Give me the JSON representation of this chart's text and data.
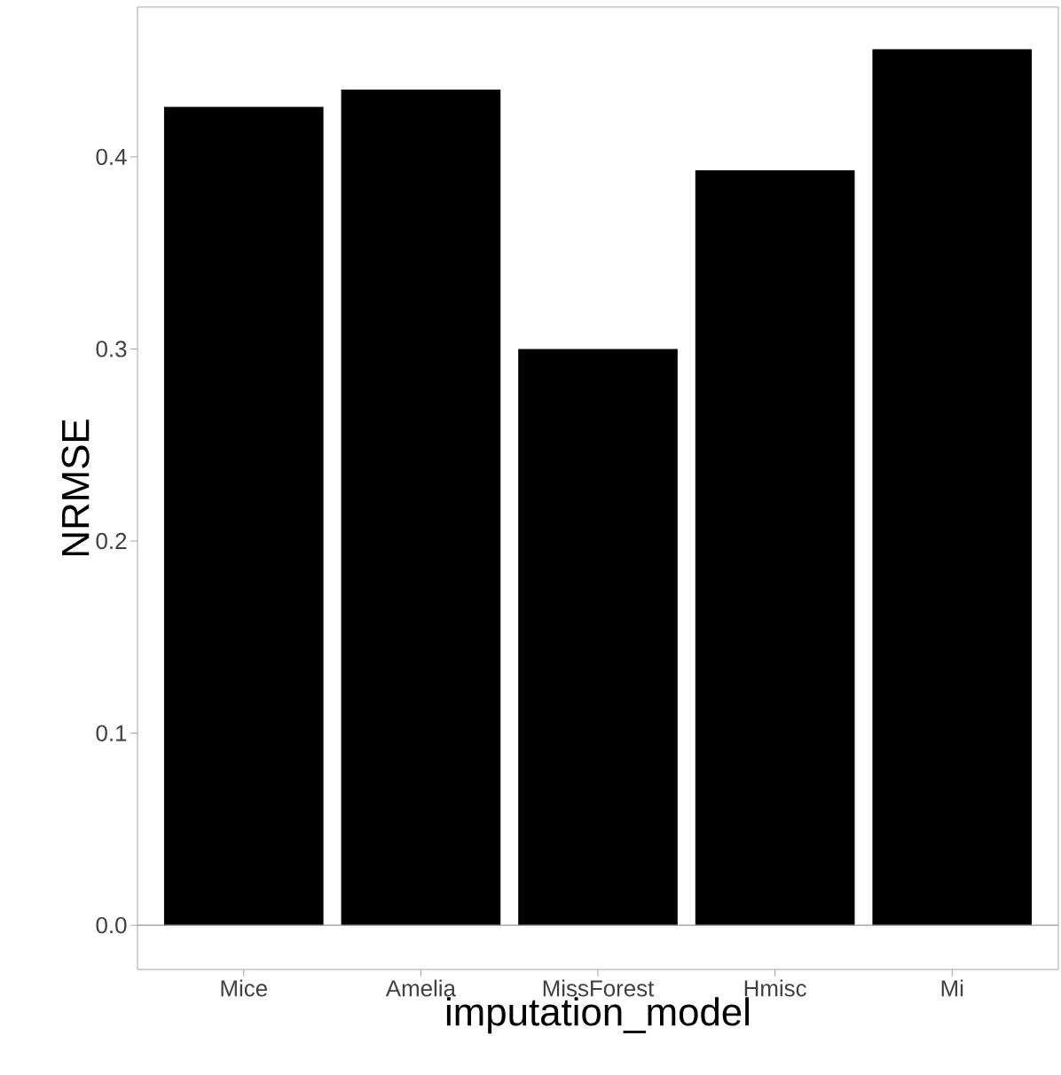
{
  "chart_data": {
    "type": "bar",
    "xlabel": "imputation_model",
    "ylabel": "NRMSE",
    "categories": [
      "Mice",
      "Amelia",
      "MissForest",
      "Hmisc",
      "Mi"
    ],
    "values": [
      0.426,
      0.435,
      0.3,
      0.393,
      0.456
    ],
    "color": "#000000",
    "ylim": [
      -0.023,
      0.478
    ],
    "yticks": [
      {
        "value": 0,
        "label": "0.0"
      },
      0.1,
      0.2,
      0.3,
      0.4
    ],
    "ref_lines": [
      {
        "axis": "y",
        "value": 0,
        "color": "#999999"
      }
    ],
    "grid": false
  }
}
